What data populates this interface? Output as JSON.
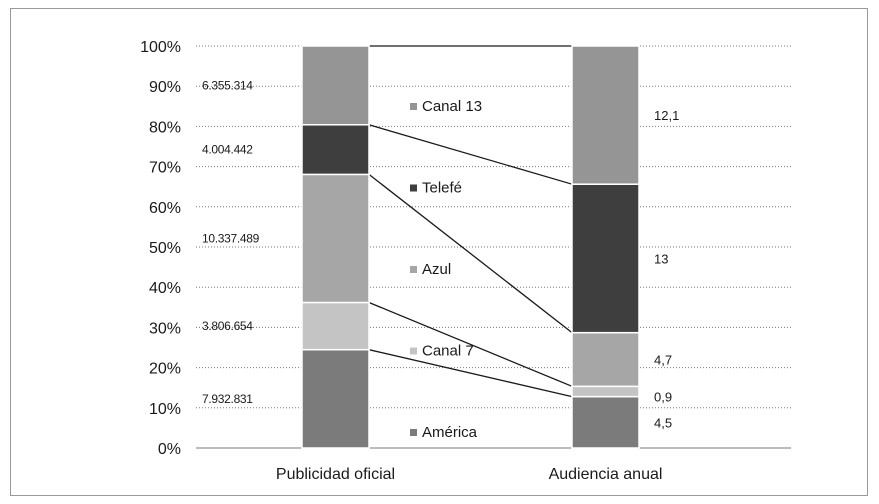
{
  "chart_data": {
    "type": "bar",
    "stacked": "percent",
    "categories": [
      "Publicidad oficial",
      "Audiencia anual"
    ],
    "yticks": [
      "0%",
      "10%",
      "20%",
      "30%",
      "40%",
      "50%",
      "60%",
      "70%",
      "80%",
      "90%",
      "100%"
    ],
    "ylim": [
      0,
      100
    ],
    "grid": true,
    "connector_lines": true,
    "series": [
      {
        "name": "América",
        "color": "#7b7b7b",
        "values": [
          7932831,
          4.5
        ],
        "labels": [
          "7.932.831",
          "4,5"
        ]
      },
      {
        "name": "Canal 7",
        "color": "#c4c4c4",
        "values": [
          3806654,
          0.9
        ],
        "labels": [
          "3.806.654",
          "0,9"
        ]
      },
      {
        "name": "Azul",
        "color": "#a6a6a6",
        "values": [
          10337489,
          4.7
        ],
        "labels": [
          "10.337.489",
          "4,7"
        ]
      },
      {
        "name": "Telefé",
        "color": "#3e3e3e",
        "values": [
          4004442,
          13
        ],
        "labels": [
          "4.004.442",
          "13"
        ]
      },
      {
        "name": "Canal 13",
        "color": "#959595",
        "values": [
          6355314,
          12.1
        ],
        "labels": [
          "6.355.314",
          "12,1"
        ]
      }
    ],
    "legend": "center"
  }
}
